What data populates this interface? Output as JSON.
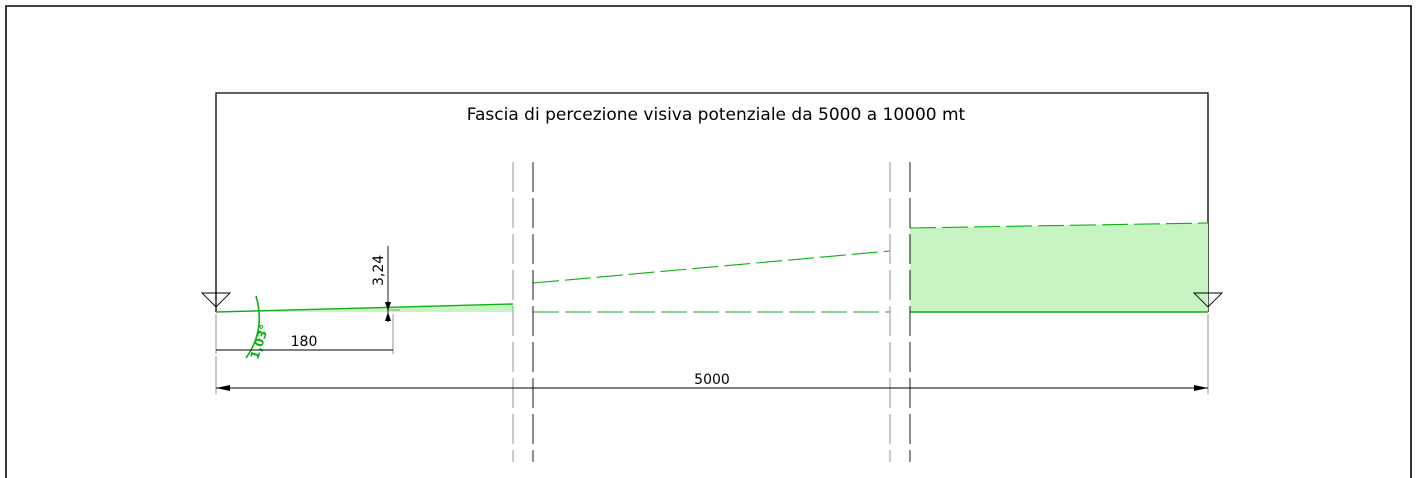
{
  "title": "Fascia di percezione visiva potenziale da 5000 a 10000 mt",
  "dimensions": {
    "total_length": "5000",
    "near_length": "180",
    "height": "3,24",
    "angle": "1,03°"
  },
  "colors": {
    "green_fill": "#c6f5c3",
    "green_line": "#0fae14"
  }
}
